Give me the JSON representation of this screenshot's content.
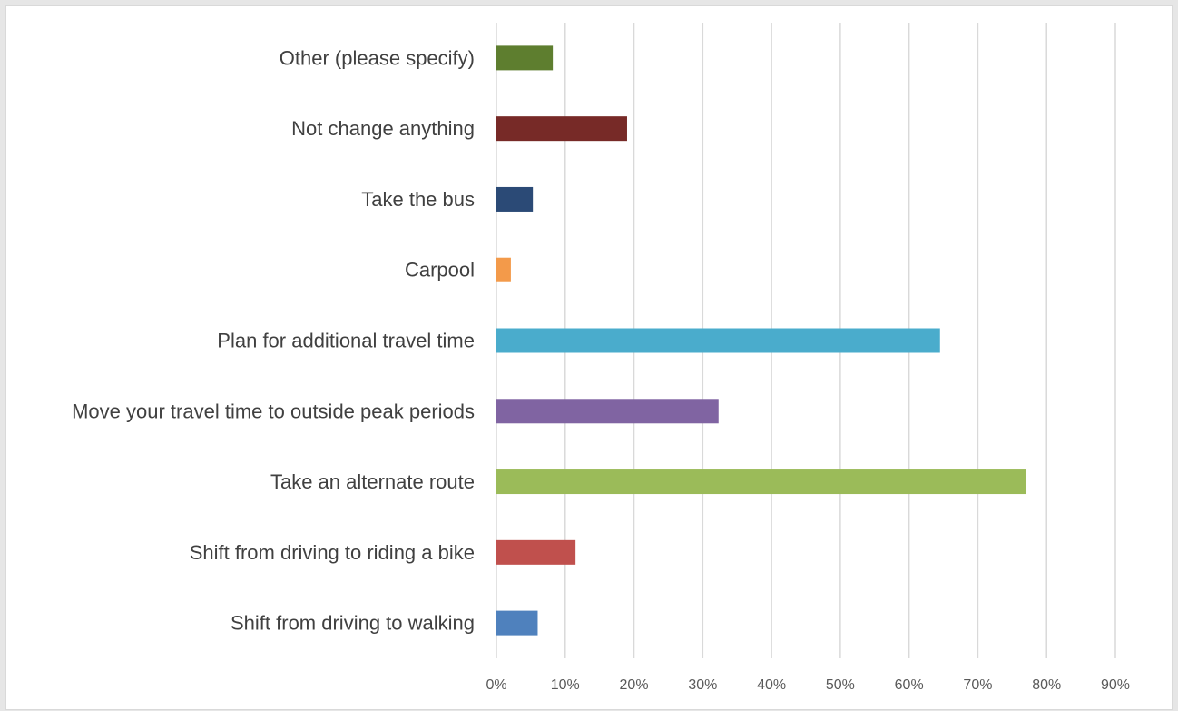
{
  "chart_data": {
    "type": "bar",
    "orientation": "horizontal",
    "title": "",
    "xlabel": "",
    "ylabel": "",
    "categories": [
      "Other (please specify)",
      "Not change anything",
      "Take the bus",
      "Carpool",
      "Plan for additional travel time",
      "Move your travel time to outside peak periods",
      "Take an alternate route",
      "Shift from driving to riding a bike",
      "Shift from driving to walking"
    ],
    "values": [
      8.2,
      19,
      5.3,
      2.1,
      64.5,
      32.3,
      77,
      11.5,
      6
    ],
    "colors": [
      "#5e7e2f",
      "#772a27",
      "#2b4a76",
      "#f39a4a",
      "#4aaccc",
      "#8064a2",
      "#9bbb59",
      "#c0504d",
      "#4f81bd"
    ],
    "xlim": [
      0,
      90
    ],
    "xticks": [
      0,
      10,
      20,
      30,
      40,
      50,
      60,
      70,
      80,
      90
    ],
    "xtick_labels": [
      "0%",
      "10%",
      "20%",
      "30%",
      "40%",
      "50%",
      "60%",
      "70%",
      "80%",
      "90%"
    ],
    "grid": true,
    "legend": "none"
  }
}
